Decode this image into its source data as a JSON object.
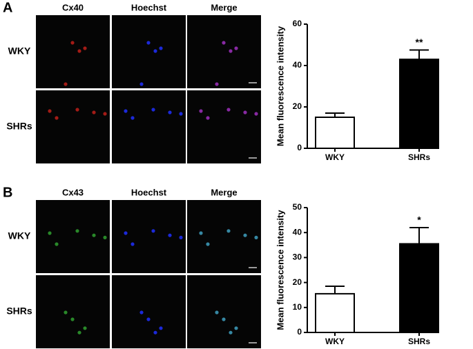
{
  "panels": [
    {
      "letter": "A",
      "columns": [
        "Cx40",
        "Hoechst",
        "Merge"
      ],
      "rows": [
        "WKY",
        "SHRs"
      ]
    },
    {
      "letter": "B",
      "columns": [
        "Cx43",
        "Hoechst",
        "Merge"
      ],
      "rows": [
        "WKY",
        "SHRs"
      ]
    }
  ],
  "chart_data": [
    {
      "type": "bar",
      "ylabel": "Mean fluorescence intensity",
      "categories": [
        "WKY",
        "SHRs"
      ],
      "values": [
        15,
        43
      ],
      "errors": [
        2,
        4.5
      ],
      "colors": [
        "#ffffff",
        "#000000"
      ],
      "annotations": [
        {
          "category": "SHRs",
          "text": "**"
        }
      ],
      "ylim": [
        0,
        60
      ],
      "yticks": [
        0,
        20,
        40,
        60
      ]
    },
    {
      "type": "bar",
      "ylabel": "Mean fluorescence intensity",
      "categories": [
        "WKY",
        "SHRs"
      ],
      "values": [
        15.5,
        35.5
      ],
      "errors": [
        3,
        6.5
      ],
      "colors": [
        "#ffffff",
        "#000000"
      ],
      "annotations": [
        {
          "category": "SHRs",
          "text": "*"
        }
      ],
      "ylim": [
        0,
        50
      ],
      "yticks": [
        0,
        10,
        20,
        30,
        40,
        50
      ]
    }
  ]
}
